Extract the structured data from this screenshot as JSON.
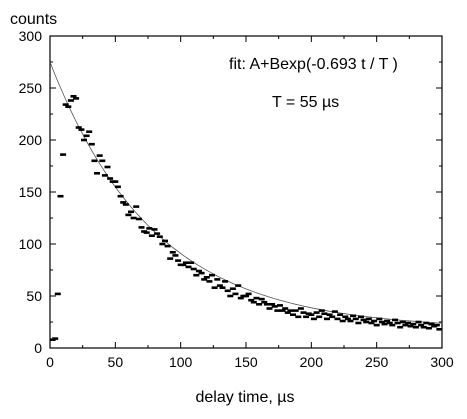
{
  "chart_data": {
    "type": "scatter",
    "ylabel": "counts",
    "xlabel": "delay time, µs",
    "xlim": [
      0,
      300
    ],
    "ylim": [
      0,
      300
    ],
    "xticks": [
      0,
      50,
      100,
      150,
      200,
      250,
      300
    ],
    "yticks": [
      0,
      50,
      100,
      150,
      200,
      250,
      300
    ],
    "grid": false,
    "annotations": [
      "fit: A+Bexp(-0.693 t / T )",
      "T = 55 µs"
    ],
    "fit": {
      "A": 18,
      "B": 257,
      "T": 55
    },
    "series": [
      {
        "x": [
          2,
          4,
          6,
          8,
          10,
          12,
          14,
          16,
          18,
          20,
          22,
          24,
          26,
          28,
          30,
          32,
          34,
          36,
          38,
          40,
          42,
          44,
          46,
          48,
          50,
          52,
          54,
          56,
          58,
          60,
          62,
          64,
          66,
          68,
          70,
          72,
          74,
          76,
          78,
          80,
          82,
          84,
          86,
          88,
          90,
          92,
          94,
          96,
          98,
          100,
          102,
          104,
          106,
          108,
          110,
          112,
          114,
          116,
          118,
          120,
          122,
          124,
          126,
          128,
          130,
          132,
          134,
          136,
          138,
          140,
          142,
          144,
          146,
          148,
          150,
          152,
          154,
          156,
          158,
          160,
          162,
          164,
          166,
          168,
          170,
          172,
          174,
          176,
          178,
          180,
          182,
          184,
          186,
          188,
          190,
          192,
          194,
          196,
          198,
          200,
          202,
          204,
          206,
          208,
          210,
          212,
          214,
          216,
          218,
          220,
          222,
          224,
          226,
          228,
          230,
          232,
          234,
          236,
          238,
          240,
          242,
          244,
          246,
          248,
          250,
          252,
          254,
          256,
          258,
          260,
          262,
          264,
          266,
          268,
          270,
          272,
          274,
          276,
          278,
          280,
          282,
          284,
          286,
          288,
          290,
          292,
          294,
          296,
          298
        ],
        "y": [
          8,
          9,
          52,
          146,
          186,
          234,
          232,
          238,
          242,
          240,
          212,
          210,
          200,
          204,
          208,
          196,
          180,
          168,
          185,
          180,
          166,
          174,
          163,
          160,
          160,
          155,
          146,
          140,
          138,
          128,
          131,
          125,
          136,
          124,
          116,
          112,
          111,
          115,
          108,
          114,
          110,
          107,
          100,
          103,
          98,
          86,
          92,
          89,
          84,
          80,
          80,
          82,
          78,
          82,
          76,
          70,
          74,
          72,
          66,
          68,
          64,
          70,
          58,
          66,
          60,
          58,
          64,
          55,
          50,
          57,
          52,
          60,
          48,
          50,
          50,
          52,
          46,
          44,
          48,
          42,
          47,
          44,
          42,
          38,
          42,
          40,
          36,
          41,
          36,
          38,
          34,
          36,
          32,
          36,
          30,
          38,
          34,
          30,
          33,
          32,
          28,
          34,
          30,
          36,
          33,
          28,
          32,
          30,
          35,
          28,
          32,
          26,
          30,
          28,
          26,
          31,
          28,
          24,
          30,
          27,
          25,
          28,
          24,
          26,
          22,
          28,
          25,
          23,
          26,
          24,
          22,
          27,
          24,
          20,
          25,
          22,
          24,
          21,
          23,
          20,
          25,
          22,
          20,
          24,
          19,
          23,
          21,
          22,
          18
        ]
      }
    ]
  }
}
